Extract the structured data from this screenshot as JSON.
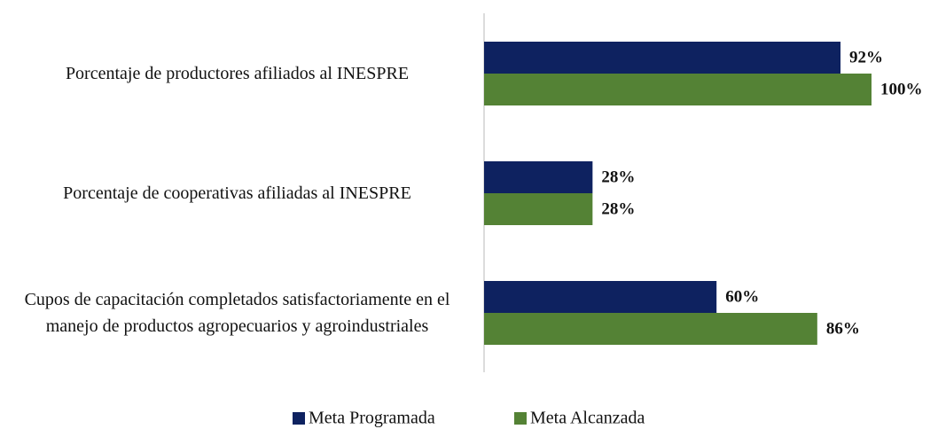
{
  "chart_data": {
    "type": "barh",
    "categories": [
      "Porcentaje de productores afiliados al INESPRE",
      "Porcentaje de cooperativas afiliadas al INESPRE",
      "Cupos de capacitación completados satisfactoriamente en el manejo de productos agropecuarios y agroindustriales"
    ],
    "series": [
      {
        "name": "Meta Programada",
        "color": "#0e2260",
        "values": [
          92,
          28,
          60
        ],
        "value_labels": [
          "92%",
          "28%",
          "60%"
        ]
      },
      {
        "name": "Meta Alcanzada",
        "color": "#548235",
        "values": [
          100,
          28,
          86
        ],
        "value_labels": [
          "100%",
          "28%",
          "86%"
        ]
      }
    ],
    "xlim": [
      0,
      100
    ],
    "legend": "bottom"
  }
}
